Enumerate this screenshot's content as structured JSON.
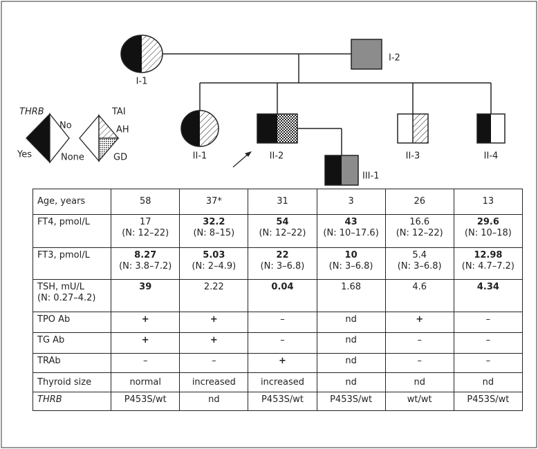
{
  "pedigree": {
    "individuals": [
      "I-1",
      "I-2",
      "II-1",
      "II-2",
      "II-3",
      "II-4",
      "III-1"
    ]
  },
  "legend": {
    "gene": "THRB",
    "yes": "Yes",
    "no": "No",
    "tai": "TAI",
    "ah": "AH",
    "none": "None",
    "gd": "GD"
  },
  "table": {
    "rows": [
      [
        "Age, years",
        "58",
        "37*",
        "31",
        "3",
        "26",
        "13"
      ],
      [
        "FT4, pmol/L",
        {
          "text": "17",
          "range": "(N: 12–22)"
        },
        {
          "text": "32.2",
          "range": "(N: 8–15)",
          "bold": true
        },
        {
          "text": "54",
          "range": "(N: 12–22)",
          "bold": true
        },
        {
          "text": "43",
          "range": "(N: 10–17.6)",
          "bold": true
        },
        {
          "text": "16.6",
          "range": "(N: 12–22)"
        },
        {
          "text": "29.6",
          "range": "(N: 10–18)",
          "bold": true
        }
      ],
      [
        "FT3, pmol/L",
        {
          "text": "8.27",
          "range": "(N: 3.8–7.2)",
          "bold": true
        },
        {
          "text": "5.03",
          "range": "(N: 2–4.9)",
          "bold": true
        },
        {
          "text": "22",
          "range": "(N: 3–6.8)",
          "bold": true
        },
        {
          "text": "10",
          "range": "(N: 3–6.8)",
          "bold": true
        },
        {
          "text": "5.4",
          "range": "(N: 3–6.8)"
        },
        {
          "text": "12.98",
          "range": "(N: 4.7–7.2)",
          "bold": true
        }
      ],
      [
        {
          "text": "TSH, mU/L",
          "range": "(N: 0.27–4.2)"
        },
        {
          "text": "39",
          "bold": true
        },
        "2.22",
        {
          "text": "0.04",
          "bold": true
        },
        "1.68",
        "4.6",
        {
          "text": "4.34",
          "bold": true
        }
      ],
      [
        "TPO Ab",
        {
          "text": "+",
          "bold": true
        },
        {
          "text": "+",
          "bold": true
        },
        "–",
        "nd",
        {
          "text": "+",
          "bold": true
        },
        "–"
      ],
      [
        "TG Ab",
        {
          "text": "+",
          "bold": true
        },
        {
          "text": "+",
          "bold": true
        },
        "–",
        "nd",
        "–",
        "–"
      ],
      [
        "TRAb",
        "–",
        "–",
        {
          "text": "+",
          "bold": true
        },
        "nd",
        "–",
        "–"
      ],
      [
        "Thyroid size",
        "normal",
        "increased",
        "increased",
        "nd",
        "nd",
        "nd"
      ],
      [
        {
          "text": "THRB",
          "italic": true
        },
        "P453S/wt",
        "nd",
        "P453S/wt",
        "P453S/wt",
        "wt/wt",
        "P453S/wt"
      ]
    ]
  }
}
